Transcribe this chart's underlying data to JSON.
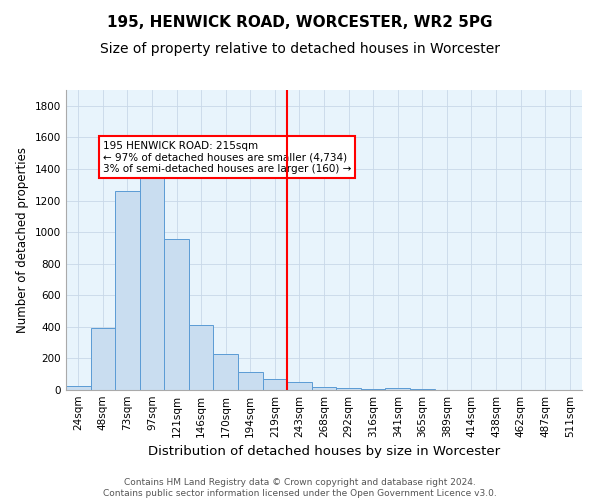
{
  "title": "195, HENWICK ROAD, WORCESTER, WR2 5PG",
  "subtitle": "Size of property relative to detached houses in Worcester",
  "xlabel": "Distribution of detached houses by size in Worcester",
  "ylabel": "Number of detached properties",
  "bin_labels": [
    "24sqm",
    "48sqm",
    "73sqm",
    "97sqm",
    "121sqm",
    "146sqm",
    "170sqm",
    "194sqm",
    "219sqm",
    "243sqm",
    "268sqm",
    "292sqm",
    "316sqm",
    "341sqm",
    "365sqm",
    "389sqm",
    "414sqm",
    "438sqm",
    "462sqm",
    "487sqm",
    "511sqm"
  ],
  "bin_values": [
    25,
    390,
    1260,
    1395,
    955,
    410,
    230,
    115,
    70,
    50,
    20,
    10,
    5,
    15,
    5,
    0,
    0,
    0,
    0,
    0,
    0
  ],
  "bar_color": "#c9ddf0",
  "bar_edge_color": "#5b9bd5",
  "vline_x_index": 8,
  "vline_color": "red",
  "annotation_text": "195 HENWICK ROAD: 215sqm\n← 97% of detached houses are smaller (4,734)\n3% of semi-detached houses are larger (160) →",
  "annotation_box_color": "white",
  "annotation_box_edge_color": "red",
  "ylim": [
    0,
    1900
  ],
  "yticks": [
    0,
    200,
    400,
    600,
    800,
    1000,
    1200,
    1400,
    1600,
    1800
  ],
  "grid_color": "#c8d8e8",
  "background_color": "#e8f4fc",
  "footer_text": "Contains HM Land Registry data © Crown copyright and database right 2024.\nContains public sector information licensed under the Open Government Licence v3.0.",
  "title_fontsize": 11,
  "subtitle_fontsize": 10,
  "xlabel_fontsize": 9.5,
  "ylabel_fontsize": 8.5,
  "tick_fontsize": 7.5,
  "footer_fontsize": 6.5,
  "annot_fontsize": 7.5
}
